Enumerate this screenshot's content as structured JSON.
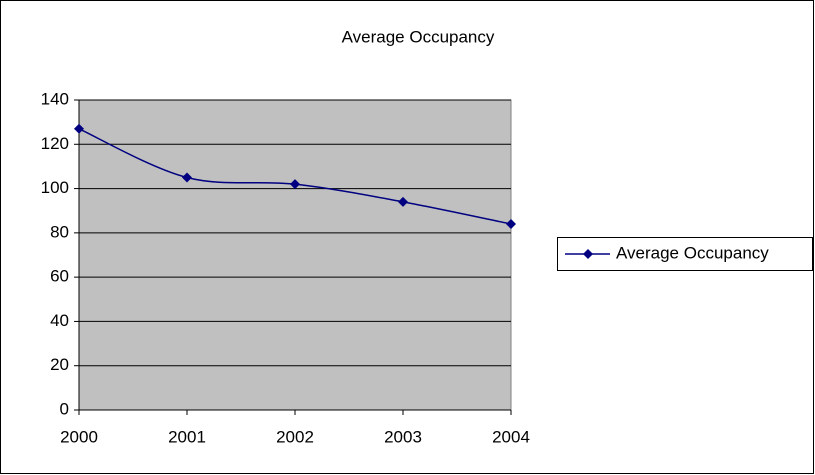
{
  "chart_data": {
    "type": "line",
    "title": "Average Occupancy",
    "categories": [
      "2000",
      "2001",
      "2002",
      "2003",
      "2004"
    ],
    "series": [
      {
        "name": "Average Occupancy",
        "color": "#000080",
        "values": [
          127,
          105,
          102,
          94,
          84
        ]
      }
    ],
    "ylim": [
      0,
      140
    ],
    "yticks": [
      0,
      20,
      40,
      60,
      80,
      100,
      120,
      140
    ],
    "grid": true,
    "smooth": true,
    "legend": "right",
    "plot_background": "#c0c0c0"
  }
}
